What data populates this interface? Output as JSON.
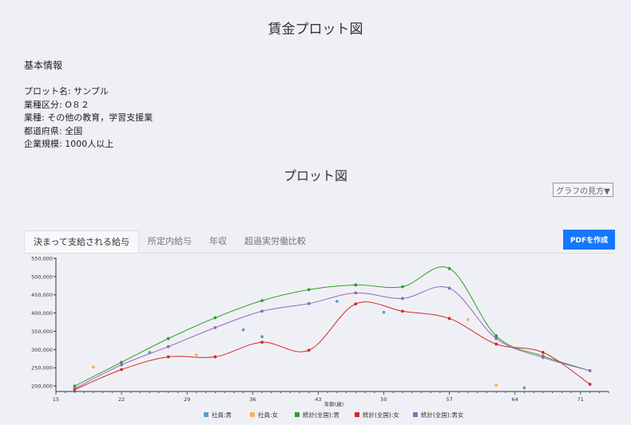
{
  "title": "賃金プロット図",
  "info": {
    "heading": "基本情報",
    "items": [
      "プロット名: サンプル",
      "業種区分: O８２",
      "業種: その他の教育，学習支援業",
      "都道府県: 全国",
      "企業規模: 1000人以上"
    ]
  },
  "plot_heading": "プロット図",
  "graph_help_label": "グラフの見方▼",
  "tabs": [
    {
      "label": "決まって支給される給与",
      "active": true
    },
    {
      "label": "所定内給与",
      "active": false
    },
    {
      "label": "年収",
      "active": false
    },
    {
      "label": "超過実労働比較",
      "active": false
    }
  ],
  "pdf_button_label": "PDFを作成",
  "chart_data": {
    "type": "scatter",
    "xlabel": "年齢(歳)",
    "ylabel": "",
    "xlim": [
      15,
      74
    ],
    "ylim": [
      185000,
      552000
    ],
    "x_ticks": [
      15,
      22,
      29,
      36,
      43,
      50,
      57,
      64,
      71
    ],
    "y_ticks": [
      200000,
      250000,
      300000,
      350000,
      400000,
      450000,
      500000,
      550000
    ],
    "y_tick_labels": [
      "200,000",
      "250,000",
      "300,000",
      "350,000",
      "400,000",
      "450,000",
      "500,000",
      "550,000"
    ],
    "legend_position": "bottom",
    "series": [
      {
        "name": "社員:男",
        "color": "#5f9ec7",
        "kind": "points",
        "points": [
          [
            17,
            193000
          ],
          [
            25,
            292000
          ],
          [
            35,
            354000
          ],
          [
            37,
            335000
          ],
          [
            45,
            432000
          ],
          [
            50,
            402000
          ],
          [
            62,
            338000
          ],
          [
            65,
            195000
          ]
        ]
      },
      {
        "name": "社員:女",
        "color": "#f5b462",
        "kind": "points",
        "points": [
          [
            19,
            252000
          ],
          [
            30,
            285000
          ],
          [
            59,
            382000
          ],
          [
            62,
            202000
          ]
        ]
      },
      {
        "name": "統計(全国):男",
        "color": "#2ca02c",
        "kind": "line",
        "points": [
          [
            17,
            200000
          ],
          [
            22,
            265000
          ],
          [
            27,
            330000
          ],
          [
            32,
            387000
          ],
          [
            37,
            434000
          ],
          [
            42,
            464000
          ],
          [
            47,
            477000
          ],
          [
            52,
            472000
          ],
          [
            57,
            522000
          ],
          [
            62,
            337000
          ],
          [
            67,
            282000
          ],
          [
            72,
            242000
          ]
        ]
      },
      {
        "name": "統計(全国):女",
        "color": "#d62728",
        "kind": "line",
        "points": [
          [
            17,
            190000
          ],
          [
            22,
            245000
          ],
          [
            27,
            280000
          ],
          [
            32,
            280000
          ],
          [
            37,
            320000
          ],
          [
            42,
            298000
          ],
          [
            47,
            425000
          ],
          [
            52,
            405000
          ],
          [
            57,
            385000
          ],
          [
            62,
            315000
          ],
          [
            67,
            292000
          ],
          [
            72,
            205000
          ]
        ]
      },
      {
        "name": "統計(全国):男女",
        "color": "#9467bd",
        "kind": "line",
        "points": [
          [
            17,
            193000
          ],
          [
            22,
            258000
          ],
          [
            27,
            308000
          ],
          [
            32,
            360000
          ],
          [
            37,
            405000
          ],
          [
            42,
            426000
          ],
          [
            47,
            455000
          ],
          [
            52,
            440000
          ],
          [
            57,
            468000
          ],
          [
            62,
            330000
          ],
          [
            67,
            278000
          ],
          [
            72,
            242000
          ]
        ]
      }
    ]
  }
}
